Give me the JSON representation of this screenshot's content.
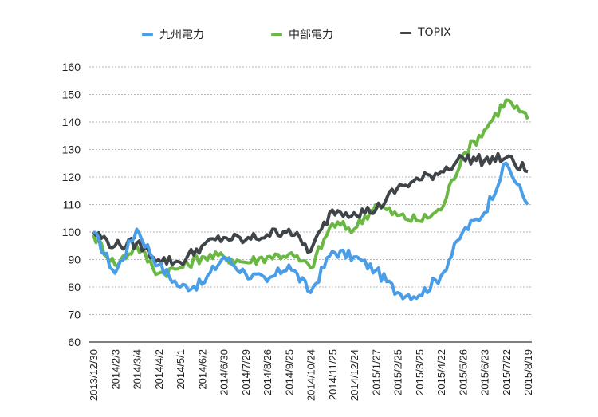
{
  "legend": [
    {
      "label": "九州電力",
      "color": "#4a9ee8"
    },
    {
      "label": "中部電力",
      "color": "#6ab843"
    },
    {
      "label": "TOPIX",
      "color": "#3f4449"
    }
  ],
  "chart_data": {
    "type": "line",
    "title": "",
    "xlabel": "",
    "ylabel": "",
    "ylim": [
      60,
      160
    ],
    "yticks": [
      60,
      70,
      80,
      90,
      100,
      110,
      120,
      130,
      140,
      150,
      160
    ],
    "grid": true,
    "legend_position": "top",
    "categories": [
      "2013/12/30",
      "2014/2/3",
      "2014/3/4",
      "2014/4/2",
      "2014/5/1",
      "2014/6/2",
      "2014/6/30",
      "2014/7/29",
      "2014/8/26",
      "2014/9/25",
      "2014/10/24",
      "2014/11/25",
      "2014/12/24",
      "2015/1/27",
      "2015/2/25",
      "2015/3/25",
      "2015/4/22",
      "2015/5/26",
      "2015/6/23",
      "2015/7/22",
      "2015/8/19"
    ],
    "series": [
      {
        "name": "九州電力",
        "color": "#4a9ee8",
        "values": [
          100,
          85,
          101,
          88,
          80,
          81,
          91,
          85,
          82,
          88,
          78,
          93,
          91,
          86,
          78,
          77,
          84,
          100,
          107,
          125,
          110
        ]
      },
      {
        "name": "中部電力",
        "color": "#6ab843",
        "values": [
          99,
          88,
          95,
          85,
          87,
          91,
          91,
          89,
          91,
          92,
          87,
          103,
          101,
          110,
          106,
          104,
          108,
          128,
          137,
          148,
          141
        ]
      },
      {
        "name": "TOPIX",
        "color": "#3f4449",
        "values": [
          100,
          95,
          96,
          90,
          89,
          95,
          98,
          97,
          99,
          101,
          93,
          108,
          107,
          108,
          116,
          119,
          122,
          127,
          126,
          127,
          122
        ]
      }
    ]
  }
}
